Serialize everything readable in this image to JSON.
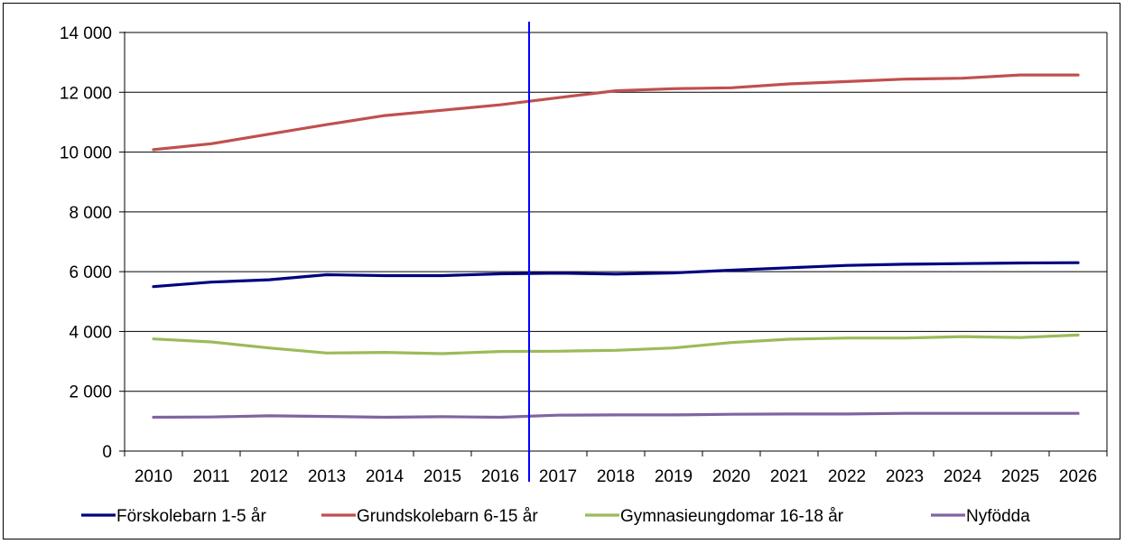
{
  "chart_data": {
    "type": "line",
    "x": [
      "2010",
      "2011",
      "2012",
      "2013",
      "2014",
      "2015",
      "2016",
      "2017",
      "2018",
      "2019",
      "2020",
      "2021",
      "2022",
      "2023",
      "2024",
      "2025",
      "2026"
    ],
    "ylim": [
      0,
      14000
    ],
    "yticks": [
      0,
      2000,
      4000,
      6000,
      8000,
      10000,
      12000,
      14000
    ],
    "ytick_labels": [
      "0",
      "2 000",
      "4 000",
      "6 000",
      "8 000",
      "10 000",
      "12 000",
      "14 000"
    ],
    "grid": "horizontal",
    "legend_position": "bottom",
    "marker_line": {
      "between": [
        "2016",
        "2017"
      ],
      "color": "#0000ff"
    },
    "series": [
      {
        "name": "Förskolebarn 1-5 år",
        "color": "#000080",
        "values": [
          5500,
          5650,
          5730,
          5900,
          5870,
          5870,
          5930,
          5950,
          5920,
          5960,
          6050,
          6130,
          6210,
          6250,
          6270,
          6290,
          6300
        ]
      },
      {
        "name": "Grundskolebarn 6-15 år",
        "color": "#c0504d",
        "values": [
          10080,
          10280,
          10600,
          10920,
          11220,
          11400,
          11580,
          11820,
          12050,
          12120,
          12150,
          12280,
          12360,
          12440,
          12470,
          12580,
          12580
        ]
      },
      {
        "name": "Gymnasieungdomar 16-18 år",
        "color": "#9bbb59",
        "values": [
          3750,
          3650,
          3450,
          3280,
          3300,
          3260,
          3330,
          3340,
          3370,
          3450,
          3630,
          3740,
          3780,
          3780,
          3830,
          3800,
          3880
        ]
      },
      {
        "name": "Nyfödda",
        "color": "#8064a2",
        "values": [
          1130,
          1140,
          1180,
          1160,
          1130,
          1150,
          1130,
          1200,
          1210,
          1210,
          1230,
          1240,
          1240,
          1260,
          1260,
          1260,
          1260
        ]
      }
    ]
  }
}
